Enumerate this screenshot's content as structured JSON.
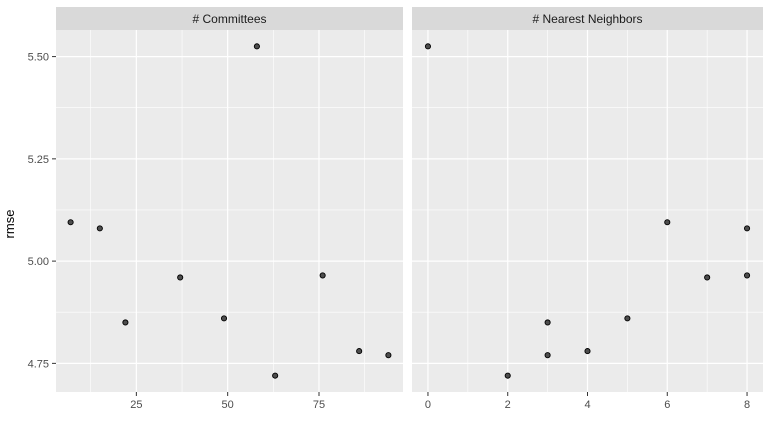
{
  "chart_data": {
    "type": "scatter",
    "ylabel": "rmse",
    "xlabel": "",
    "ylim": [
      4.68,
      5.565
    ],
    "yticks": [
      4.75,
      5.0,
      5.25,
      5.5
    ],
    "ytick_labels": [
      "4.75",
      "5.00",
      "5.25",
      "5.50"
    ],
    "grid": true,
    "colors": {
      "panel_bg": "#EBEBEB",
      "strip_bg": "#D9D9D9",
      "grid_major": "#FFFFFF",
      "point_fill": "#4D4D4D",
      "point_stroke": "#000000"
    },
    "panels": [
      {
        "id": "committees",
        "strip": "# Committees",
        "xlim": [
          3,
          98
        ],
        "xticks": [
          25,
          50,
          75
        ],
        "xtick_labels": [
          "25",
          "50",
          "75"
        ],
        "x": [
          7,
          15,
          22,
          37,
          49,
          58,
          63,
          76,
          86,
          94
        ],
        "y": [
          5.095,
          5.08,
          4.85,
          4.96,
          4.86,
          5.525,
          4.72,
          4.965,
          4.78,
          4.77
        ]
      },
      {
        "id": "neighbors",
        "strip": "# Nearest Neighbors",
        "xlim": [
          -0.4,
          8.4
        ],
        "xticks": [
          0,
          2,
          4,
          6,
          8
        ],
        "xtick_labels": [
          "0",
          "2",
          "4",
          "6",
          "8"
        ],
        "x": [
          0,
          2,
          3,
          3,
          4,
          5,
          6,
          7,
          8,
          8
        ],
        "y": [
          5.525,
          4.72,
          4.85,
          4.77,
          4.78,
          4.86,
          5.095,
          4.96,
          5.08,
          4.965
        ]
      }
    ]
  }
}
